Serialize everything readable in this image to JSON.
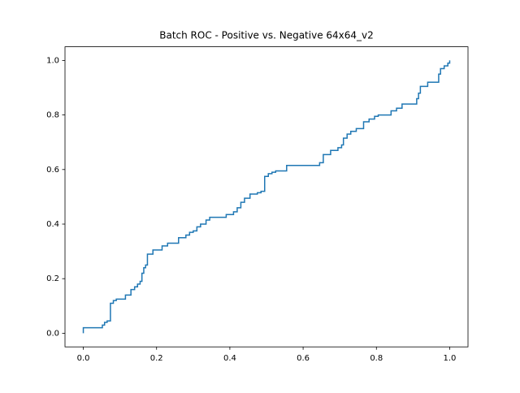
{
  "chart_data": {
    "type": "line",
    "title": "Batch ROC - Positive vs. Negative 64x64_v2",
    "color": "#1f77b4",
    "xlim": [
      -0.05,
      1.05
    ],
    "ylim": [
      -0.05,
      1.05
    ],
    "xticks": [
      {
        "value": 0,
        "label": "0.0"
      },
      {
        "value": 0.2,
        "label": "0.2"
      },
      {
        "value": 0.4,
        "label": "0.4"
      },
      {
        "value": 0.6,
        "label": "0.6"
      },
      {
        "value": 0.8,
        "label": "0.8"
      },
      {
        "value": 1,
        "label": "1.0"
      }
    ],
    "yticks": [
      {
        "value": 0,
        "label": "0.0"
      },
      {
        "value": 0.2,
        "label": "0.2"
      },
      {
        "value": 0.4,
        "label": "0.4"
      },
      {
        "value": 0.6,
        "label": "0.6"
      },
      {
        "value": 0.8,
        "label": "0.8"
      },
      {
        "value": 1,
        "label": "1.0"
      }
    ],
    "x": [
      0,
      0,
      0.052,
      0.052,
      0.058,
      0.058,
      0.065,
      0.065,
      0.074,
      0.074,
      0.082,
      0.082,
      0.09,
      0.09,
      0.115,
      0.115,
      0.13,
      0.13,
      0.14,
      0.14,
      0.148,
      0.148,
      0.155,
      0.155,
      0.16,
      0.16,
      0.165,
      0.165,
      0.17,
      0.17,
      0.175,
      0.175,
      0.19,
      0.19,
      0.215,
      0.215,
      0.23,
      0.23,
      0.26,
      0.26,
      0.28,
      0.28,
      0.29,
      0.29,
      0.3,
      0.3,
      0.31,
      0.31,
      0.32,
      0.32,
      0.335,
      0.335,
      0.345,
      0.345,
      0.39,
      0.39,
      0.41,
      0.41,
      0.42,
      0.42,
      0.43,
      0.43,
      0.44,
      0.44,
      0.455,
      0.455,
      0.475,
      0.475,
      0.485,
      0.485,
      0.495,
      0.495,
      0.505,
      0.505,
      0.515,
      0.515,
      0.525,
      0.525,
      0.555,
      0.555,
      0.645,
      0.645,
      0.655,
      0.655,
      0.675,
      0.675,
      0.695,
      0.695,
      0.705,
      0.705,
      0.71,
      0.71,
      0.72,
      0.72,
      0.73,
      0.73,
      0.745,
      0.745,
      0.765,
      0.765,
      0.78,
      0.78,
      0.795,
      0.795,
      0.805,
      0.805,
      0.84,
      0.84,
      0.855,
      0.855,
      0.87,
      0.87,
      0.91,
      0.91,
      0.915,
      0.915,
      0.92,
      0.92,
      0.94,
      0.94,
      0.97,
      0.97,
      0.975,
      0.975,
      0.985,
      0.985,
      0.995,
      0.995,
      1,
      1
    ],
    "values": [
      0,
      0.02,
      0.02,
      0.03,
      0.03,
      0.04,
      0.04,
      0.045,
      0.045,
      0.11,
      0.11,
      0.12,
      0.12,
      0.125,
      0.125,
      0.14,
      0.14,
      0.16,
      0.16,
      0.17,
      0.17,
      0.18,
      0.18,
      0.19,
      0.19,
      0.22,
      0.22,
      0.24,
      0.24,
      0.25,
      0.25,
      0.29,
      0.29,
      0.305,
      0.305,
      0.32,
      0.32,
      0.33,
      0.33,
      0.35,
      0.35,
      0.36,
      0.36,
      0.37,
      0.37,
      0.375,
      0.375,
      0.39,
      0.39,
      0.4,
      0.4,
      0.415,
      0.415,
      0.425,
      0.425,
      0.435,
      0.435,
      0.445,
      0.445,
      0.46,
      0.46,
      0.48,
      0.48,
      0.495,
      0.495,
      0.51,
      0.51,
      0.515,
      0.515,
      0.52,
      0.52,
      0.575,
      0.575,
      0.585,
      0.585,
      0.59,
      0.59,
      0.595,
      0.595,
      0.615,
      0.615,
      0.625,
      0.625,
      0.655,
      0.655,
      0.67,
      0.67,
      0.68,
      0.68,
      0.69,
      0.69,
      0.715,
      0.715,
      0.73,
      0.73,
      0.74,
      0.74,
      0.75,
      0.75,
      0.775,
      0.775,
      0.785,
      0.785,
      0.795,
      0.795,
      0.8,
      0.8,
      0.815,
      0.815,
      0.825,
      0.825,
      0.84,
      0.84,
      0.86,
      0.86,
      0.88,
      0.88,
      0.905,
      0.905,
      0.92,
      0.92,
      0.95,
      0.95,
      0.97,
      0.97,
      0.98,
      0.98,
      0.99,
      0.99,
      1
    ]
  }
}
